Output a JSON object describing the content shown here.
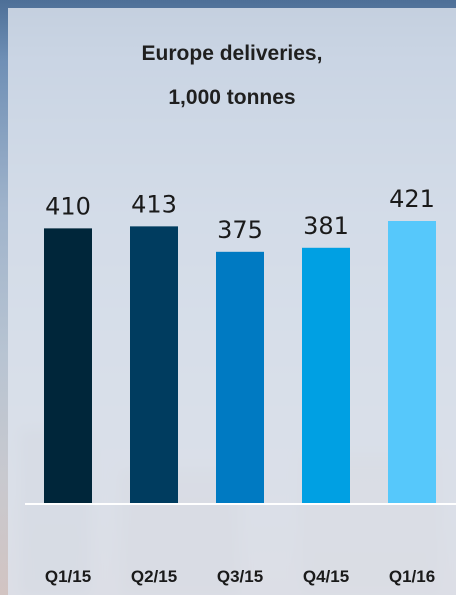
{
  "chart_data": {
    "type": "bar",
    "title_line1": "Europe deliveries,",
    "title_line2": "1,000 tonnes",
    "categories": [
      "Q1/15",
      "Q2/15",
      "Q3/15",
      "Q4/15",
      "Q1/16"
    ],
    "values": [
      410,
      413,
      375,
      381,
      421
    ],
    "value_labels": [
      "410",
      "413",
      "375",
      "381",
      "421"
    ],
    "bar_colors": [
      "#00263a",
      "#003c5f",
      "#007ac2",
      "#00a0e3",
      "#56c8fb"
    ],
    "baseline_color": "#ffffff",
    "ylim": [
      0,
      421
    ],
    "grid": false,
    "legend": "none"
  }
}
